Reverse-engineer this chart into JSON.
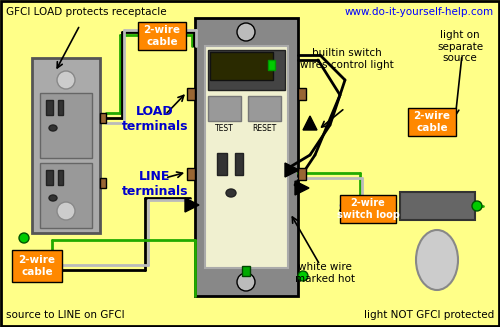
{
  "bg_color": "#FFFF88",
  "border_color": "#000000",
  "title_text": "www.do-it-yourself-help.com",
  "title_color": "#0000FF",
  "top_left_text": "GFCI LOAD protects receptacle",
  "bottom_left_text": "source to LINE on GFCI",
  "bottom_right_text": "light NOT GFCI protected",
  "label_load": "LOAD\nterminals",
  "label_line": "LINE\nterminals",
  "label_builtin": "builtin switch\nwires control light",
  "label_light_on": "light on\nseparate\nsource",
  "label_white_wire": "white wire\nmarked hot",
  "orange_label_cable": "2-wire\ncable",
  "orange_label_switch": "2-wire\nswitch loop",
  "orange_bg": "#FF8800",
  "wire_green": "#22AA00",
  "wire_black": "#111111",
  "wire_white": "#BBBBBB",
  "gfci_plate_color": "#888888",
  "gfci_body_color": "#F0F0D0",
  "outlet_body_color": "#AAAAAA",
  "annotation_color": "#0000CC",
  "black_color": "#000000",
  "brown_color": "#996633",
  "green_dot_color": "#00CC00",
  "dark_switch": "#333333",
  "test_btn_color": "#999999"
}
